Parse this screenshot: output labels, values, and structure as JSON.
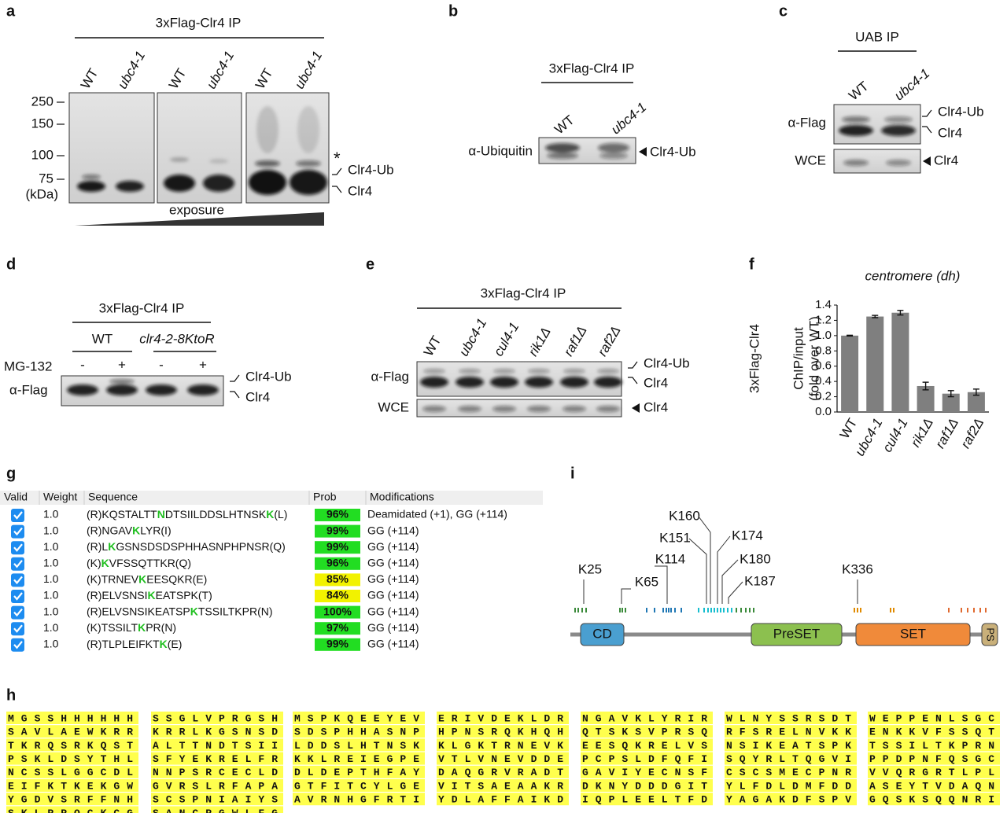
{
  "blots": {
    "a": {
      "label": "a",
      "title": "3xFlag-Clr4 IP",
      "lanes": [
        "WT",
        "ubc4-1",
        "WT",
        "ubc4-1",
        "WT",
        "ubc4-1"
      ],
      "markers": [
        "250",
        "150",
        "100",
        "75"
      ],
      "unit": "(kDa)",
      "asterisk": "*",
      "bands": [
        "Clr4-Ub",
        "Clr4"
      ],
      "wedge_label": "exposure"
    },
    "b": {
      "label": "b",
      "title": "3xFlag-Clr4 IP",
      "lanes": [
        "WT",
        "ubc4-1"
      ],
      "antibody": "α-Ubiquitin",
      "band": "Clr4-Ub"
    },
    "c": {
      "label": "c",
      "title": "UAB IP",
      "lanes": [
        "WT",
        "ubc4-1"
      ],
      "antibody": "α-Flag",
      "bands": [
        "Clr4-Ub",
        "Clr4"
      ],
      "loading": "WCE",
      "loading_band": "Clr4"
    },
    "d": {
      "label": "d",
      "title": "3xFlag-Clr4 IP",
      "strains": [
        "WT",
        "clr4-2-8KtoR"
      ],
      "treatment": "MG-132",
      "treatment_signs": [
        "-",
        "+",
        "-",
        "+"
      ],
      "antibody": "α-Flag",
      "bands": [
        "Clr4-Ub",
        "Clr4"
      ]
    },
    "e": {
      "label": "e",
      "title": "3xFlag-Clr4 IP",
      "lanes": [
        "WT",
        "ubc4-1",
        "cul4-1",
        "rik1Δ",
        "raf1Δ",
        "raf2Δ"
      ],
      "antibody": "α-Flag",
      "bands": [
        "Clr4-Ub",
        "Clr4"
      ],
      "loading": "WCE",
      "loading_band": "Clr4"
    }
  },
  "chart_data": {
    "type": "bar",
    "panel_label": "f",
    "title": "centromere (dh)",
    "ylabel": [
      "ChIP/input",
      "(fold over WT)"
    ],
    "ylabel_prefix": "3xFlag-Clr4",
    "ylabel_prefix_color": "#9b4fc6",
    "categories": [
      "WT",
      "ubc4-1",
      "cul4-1",
      "rik1Δ",
      "raf1Δ",
      "raf2Δ"
    ],
    "values": [
      1.0,
      1.25,
      1.3,
      0.34,
      0.24,
      0.26
    ],
    "errors": [
      0.005,
      0.015,
      0.03,
      0.05,
      0.04,
      0.04
    ],
    "color": "#7f7f7f",
    "ylim": [
      0,
      1.4
    ],
    "yticks": [
      {
        "value": 0,
        "label": "0.0"
      },
      {
        "value": 0.2,
        "label": "0.2"
      },
      {
        "value": 0.4,
        "label": "0.4"
      },
      {
        "value": 0.6,
        "label": "0.6"
      },
      {
        "value": 0.8,
        "label": "0.8"
      },
      {
        "value": 1.0,
        "label": "1.0"
      },
      {
        "value": 1.2,
        "label": "1.2"
      },
      {
        "value": 1.4,
        "label": "1.4"
      }
    ]
  },
  "table": {
    "label": "g",
    "headers": [
      "Valid",
      "Weight",
      "Sequence",
      "Prob",
      "Modifications"
    ],
    "rows": [
      {
        "weight": "1.0",
        "sequence": [
          "(R)KQSTALTT",
          "N",
          "DTSIILDDSLHTNSK",
          "K",
          "(L)"
        ],
        "prob": "96%",
        "prob_color": "#22dd22",
        "modifications": "Deamidated (+1), GG (+114)"
      },
      {
        "weight": "1.0",
        "sequence": [
          "(R)NGAV",
          "K",
          "LYR(I)"
        ],
        "prob": "99%",
        "prob_color": "#22dd22",
        "modifications": "GG (+114)"
      },
      {
        "weight": "1.0",
        "sequence": [
          "(R)L",
          "K",
          "GSNSDSDSPHHASNPHPNSR(Q)"
        ],
        "prob": "99%",
        "prob_color": "#22dd22",
        "modifications": "GG (+114)"
      },
      {
        "weight": "1.0",
        "sequence": [
          "(K)",
          "K",
          "VFSSQTTKR(Q)"
        ],
        "prob": "96%",
        "prob_color": "#22dd22",
        "modifications": "GG (+114)"
      },
      {
        "weight": "1.0",
        "sequence": [
          "(K)TRNEV",
          "K",
          "EESQKR(E)"
        ],
        "prob": "85%",
        "prob_color": "#f2f200",
        "modifications": "GG (+114)"
      },
      {
        "weight": "1.0",
        "sequence": [
          "(R)ELVSNSI",
          "K",
          "EATSPK(T)"
        ],
        "prob": "84%",
        "prob_color": "#f2f200",
        "modifications": "GG (+114)"
      },
      {
        "weight": "1.0",
        "sequence": [
          "(R)ELVSNSIKEATSP",
          "K",
          "TSSILTKPR(N)"
        ],
        "prob": "100%",
        "prob_color": "#22dd22",
        "modifications": "GG (+114)"
      },
      {
        "weight": "1.0",
        "sequence": [
          "(K)TSSILT",
          "K",
          "PR(N)"
        ],
        "prob": "97%",
        "prob_color": "#22dd22",
        "modifications": "GG (+114)"
      },
      {
        "weight": "1.0",
        "sequence": [
          "(R)TLPLEIFKT",
          "K",
          "(E)"
        ],
        "prob": "99%",
        "prob_color": "#22dd22",
        "modifications": "GG (+114)"
      }
    ]
  },
  "domain_diagram": {
    "label": "i",
    "sites": [
      "K25",
      "K65",
      "K114",
      "K151",
      "K160",
      "K174",
      "K180",
      "K187",
      "K336"
    ],
    "domains": [
      "CD",
      "PreSET",
      "SET",
      "PS"
    ]
  },
  "sequence": {
    "label": "h",
    "blocks": [
      [
        "MGSSHHHHHH",
        "SAVLAEWKRR",
        "TKRQSRKQST",
        "PSKLDSYTHL",
        "NCSSLGGCDL",
        "EIFKTKEKGW",
        "YGDVSRFFNH",
        "SKLRRQCKCG"
      ],
      [
        "SSGLVPRGSH",
        "KRRLKGSNSD",
        "ALTTNDTSII",
        "SFYEKRELFR",
        "NNPSRCECLD",
        "GVRSLRFAPA",
        "SCSPNIAIYS",
        "SANCRGWLFG"
      ],
      [
        "MSPKQEEYEV",
        "SDSPHHASNP",
        "LDDSLHTNSK",
        "KKLREIEGPE",
        "DLDEPTHFAY",
        "GTFITCYLGE",
        "AVRNHGFRTI"
      ],
      [
        "ERIVDEKLDR",
        "HPNSRQKHQH",
        "KLGKTRNEVK",
        "VTLVNEVDDE",
        "DAQGRVRADT",
        "VITSAEAAKR",
        "YDLAFFAIKD"
      ],
      [
        "NGAVKLYRIR",
        "QTSKSVPRSQ",
        "EESQKRELVS",
        "PCPSLDFQFI",
        "GAVIYECNSF",
        "DKNYDDDGIT",
        "IQPLEELTFD"
      ],
      [
        "WLNYSSRSDT",
        "RFSRELNVKK",
        "NSIKEATSPK",
        "SQYRLTQGVI",
        "CSCSMECPNR",
        "YLFDLDMFDD",
        "YAGAKDFSPV"
      ],
      [
        "WEPPENLSGC",
        "ENKKVFSSQT",
        "TSSILTKPRN",
        "PPDPNFQSGC",
        "VVQRGRTLPL",
        "ASEYTVDAQN",
        "GQSKSQQNRI"
      ]
    ]
  }
}
